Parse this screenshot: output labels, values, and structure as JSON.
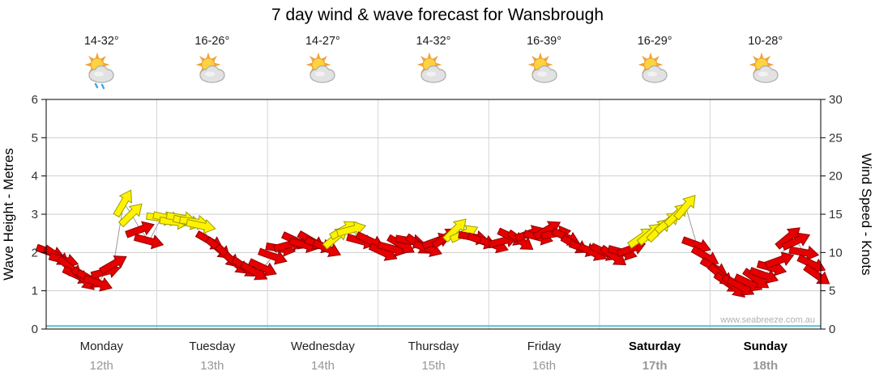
{
  "title": "7 day wind & wave forecast for Wansbrough",
  "watermark": "www.seabreeze.com.au",
  "axes": {
    "left_label": "Wave Height - Metres",
    "right_label": "Wind Speed - Knots",
    "left_ticks": [
      0,
      1,
      2,
      3,
      4,
      5,
      6
    ],
    "right_ticks": [
      0,
      5,
      10,
      15,
      20,
      25,
      30
    ]
  },
  "days": [
    {
      "name": "Monday",
      "date": "12th",
      "temp": "14-32°",
      "icon": "sun-cloud-rain",
      "weekend": false
    },
    {
      "name": "Tuesday",
      "date": "13th",
      "temp": "16-26°",
      "icon": "sun-cloud",
      "weekend": false
    },
    {
      "name": "Wednesday",
      "date": "14th",
      "temp": "14-27°",
      "icon": "sun-cloud",
      "weekend": false
    },
    {
      "name": "Thursday",
      "date": "15th",
      "temp": "14-32°",
      "icon": "sun-cloud",
      "weekend": false
    },
    {
      "name": "Friday",
      "date": "16th",
      "temp": "16-39°",
      "icon": "sun-cloud",
      "weekend": false
    },
    {
      "name": "Saturday",
      "date": "17th",
      "temp": "16-29°",
      "icon": "sun-cloud",
      "weekend": true
    },
    {
      "name": "Sunday",
      "date": "18th",
      "temp": "10-28°",
      "icon": "sun-cloud",
      "weekend": true
    }
  ],
  "colors": {
    "arrow_red": "#E60000",
    "arrow_red_stroke": "#8F0000",
    "arrow_yellow": "#FFF200",
    "arrow_yellow_stroke": "#9C9C00",
    "wave_line": "#55C3CE",
    "wind_line": "#9A9A9A",
    "grid": "#CDCDCD",
    "separator": "#D5D5D5",
    "frame": "#000000",
    "tick_text": "#333333",
    "watermark_text": "#B0B0B0"
  },
  "chart_data": {
    "type": "scatter",
    "subtype": "wind-arrows",
    "title": "7 day wind & wave forecast for Wansbrough",
    "x_categories": [
      "Monday 12th",
      "Tuesday 13th",
      "Wednesday 14th",
      "Thursday 15th",
      "Friday 16th",
      "Saturday 17th",
      "Sunday 18th"
    ],
    "y_left": {
      "label": "Wave Height - Metres",
      "range": [
        0,
        6
      ]
    },
    "y_right": {
      "label": "Wind Speed - Knots",
      "range": [
        0,
        30
      ]
    },
    "grid": true,
    "wave_height_m": {
      "constant_m": 0.08
    },
    "arrow_point_format": [
      "t_fraction_of_day",
      "wind_knots",
      "rotation_deg_cw_from_east",
      "color r|y"
    ],
    "wind_arrows": [
      {
        "day": "Monday",
        "points": [
          [
            0.04,
            10,
            20,
            "r"
          ],
          [
            0.1,
            9.5,
            35,
            "r"
          ],
          [
            0.16,
            9,
            15,
            "r"
          ],
          [
            0.22,
            8,
            40,
            "r"
          ],
          [
            0.28,
            7,
            25,
            "r"
          ],
          [
            0.34,
            6.5,
            45,
            "r"
          ],
          [
            0.4,
            6.5,
            30,
            "r"
          ],
          [
            0.47,
            6,
            20,
            "r"
          ],
          [
            0.54,
            7.5,
            -15,
            "r"
          ],
          [
            0.61,
            8.5,
            -30,
            "r"
          ],
          [
            0.7,
            16.5,
            -60,
            "y"
          ],
          [
            0.77,
            15,
            -45,
            "y"
          ],
          [
            0.85,
            13,
            -20,
            "r"
          ],
          [
            0.93,
            11.5,
            15,
            "r"
          ]
        ]
      },
      {
        "day": "Tuesday",
        "points": [
          [
            0.04,
            14.5,
            8,
            "y"
          ],
          [
            0.1,
            14.5,
            12,
            "y"
          ],
          [
            0.16,
            14,
            6,
            "y"
          ],
          [
            0.22,
            14.5,
            10,
            "y"
          ],
          [
            0.28,
            14,
            14,
            "y"
          ],
          [
            0.34,
            14,
            8,
            "y"
          ],
          [
            0.4,
            13.5,
            12,
            "y"
          ],
          [
            0.48,
            11.5,
            30,
            "r"
          ],
          [
            0.56,
            10.5,
            40,
            "r"
          ],
          [
            0.64,
            9.5,
            45,
            "r"
          ],
          [
            0.72,
            8.5,
            40,
            "r"
          ],
          [
            0.8,
            8,
            35,
            "r"
          ],
          [
            0.88,
            7.5,
            30,
            "r"
          ],
          [
            0.96,
            8,
            25,
            "r"
          ]
        ]
      },
      {
        "day": "Wednesday",
        "points": [
          [
            0.05,
            9.5,
            20,
            "r"
          ],
          [
            0.12,
            10.5,
            10,
            "r"
          ],
          [
            0.19,
            11,
            -15,
            "r"
          ],
          [
            0.26,
            11.5,
            25,
            "r"
          ],
          [
            0.33,
            11,
            15,
            "r"
          ],
          [
            0.4,
            11.5,
            30,
            "r"
          ],
          [
            0.47,
            11,
            20,
            "r"
          ],
          [
            0.54,
            10.5,
            25,
            "r"
          ],
          [
            0.62,
            12,
            -40,
            "y"
          ],
          [
            0.69,
            13,
            -30,
            "y"
          ],
          [
            0.76,
            13,
            -15,
            "y"
          ],
          [
            0.85,
            11.5,
            15,
            "r"
          ],
          [
            0.93,
            11.5,
            25,
            "r"
          ]
        ]
      },
      {
        "day": "Thursday",
        "points": [
          [
            0.05,
            10,
            25,
            "r"
          ],
          [
            0.13,
            10.5,
            15,
            "r"
          ],
          [
            0.21,
            11,
            30,
            "r"
          ],
          [
            0.29,
            11.5,
            10,
            "r"
          ],
          [
            0.37,
            11,
            35,
            "r"
          ],
          [
            0.45,
            10.5,
            20,
            "r"
          ],
          [
            0.53,
            11.5,
            -20,
            "r"
          ],
          [
            0.61,
            12,
            -35,
            "r"
          ],
          [
            0.7,
            13,
            -45,
            "y"
          ],
          [
            0.78,
            12.5,
            -25,
            "y"
          ],
          [
            0.86,
            12,
            10,
            "r"
          ],
          [
            0.94,
            11.5,
            20,
            "r"
          ]
        ]
      },
      {
        "day": "Friday",
        "points": [
          [
            0.05,
            11,
            20,
            "r"
          ],
          [
            0.13,
            11.5,
            -15,
            "r"
          ],
          [
            0.21,
            12,
            25,
            "r"
          ],
          [
            0.29,
            11.5,
            35,
            "r"
          ],
          [
            0.37,
            12.5,
            -20,
            "r"
          ],
          [
            0.45,
            12,
            15,
            "r"
          ],
          [
            0.53,
            13,
            -30,
            "r"
          ],
          [
            0.61,
            12.5,
            -10,
            "r"
          ],
          [
            0.7,
            12,
            25,
            "r"
          ],
          [
            0.78,
            11,
            30,
            "r"
          ],
          [
            0.86,
            10.5,
            20,
            "r"
          ],
          [
            0.94,
            10,
            25,
            "r"
          ]
        ]
      },
      {
        "day": "Saturday",
        "points": [
          [
            0.05,
            10,
            25,
            "r"
          ],
          [
            0.13,
            9.5,
            35,
            "r"
          ],
          [
            0.21,
            10,
            15,
            "r"
          ],
          [
            0.29,
            10.5,
            -20,
            "r"
          ],
          [
            0.38,
            12,
            -35,
            "y"
          ],
          [
            0.46,
            12.5,
            -40,
            "y"
          ],
          [
            0.54,
            13,
            -45,
            "y"
          ],
          [
            0.62,
            14,
            -40,
            "y"
          ],
          [
            0.7,
            15,
            -45,
            "y"
          ],
          [
            0.78,
            16,
            -50,
            "y"
          ],
          [
            0.88,
            11,
            20,
            "r"
          ],
          [
            0.96,
            9.5,
            30,
            "r"
          ]
        ]
      },
      {
        "day": "Sunday",
        "points": [
          [
            0.04,
            8,
            30,
            "r"
          ],
          [
            0.1,
            7,
            40,
            "r"
          ],
          [
            0.16,
            6,
            35,
            "r"
          ],
          [
            0.22,
            5.5,
            45,
            "r"
          ],
          [
            0.28,
            5.5,
            30,
            "r"
          ],
          [
            0.35,
            6,
            25,
            "r"
          ],
          [
            0.42,
            6.5,
            35,
            "r"
          ],
          [
            0.49,
            7,
            20,
            "r"
          ],
          [
            0.56,
            8,
            15,
            "r"
          ],
          [
            0.63,
            9,
            -20,
            "r"
          ],
          [
            0.71,
            12,
            -40,
            "r"
          ],
          [
            0.78,
            11.5,
            -25,
            "r"
          ],
          [
            0.85,
            10,
            10,
            "r"
          ],
          [
            0.92,
            8.5,
            25,
            "r"
          ],
          [
            0.97,
            7,
            35,
            "r"
          ]
        ]
      }
    ]
  }
}
